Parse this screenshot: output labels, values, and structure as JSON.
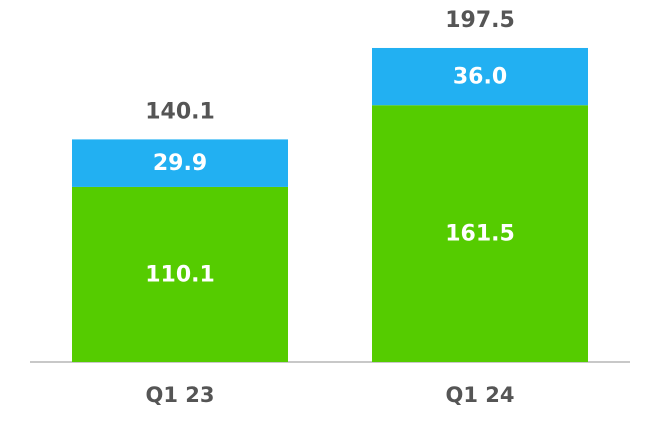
{
  "chart_data": {
    "type": "stacked-bar",
    "categories": [
      "Q1 23",
      "Q1 24"
    ],
    "series": [
      {
        "color": "#55cc00",
        "values": [
          110.1,
          161.5
        ],
        "value_labels": [
          "110.1",
          "161.5"
        ]
      },
      {
        "color": "#22b0f2",
        "values": [
          29.9,
          36.0
        ],
        "value_labels": [
          "29.9",
          "36.0"
        ]
      }
    ],
    "totals": [
      140.1,
      197.5
    ],
    "ylim": [
      0,
      200
    ]
  }
}
